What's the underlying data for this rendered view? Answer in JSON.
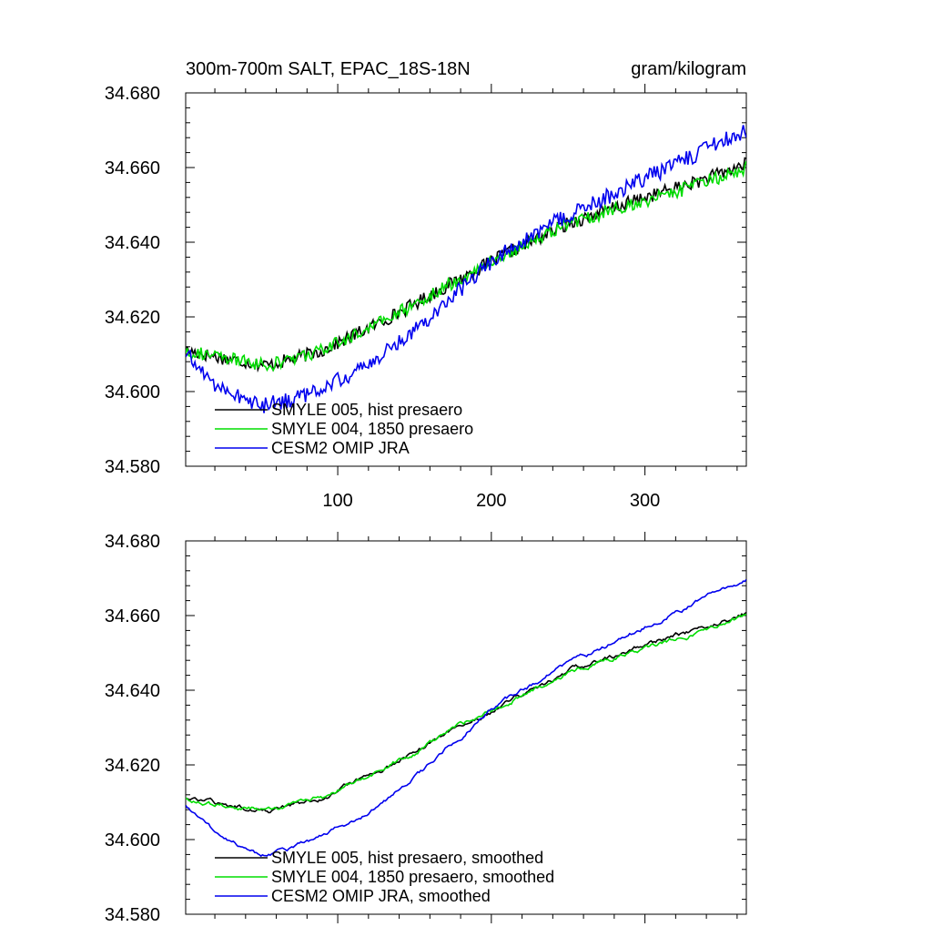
{
  "header": {
    "title": "300m-700m SALT, EPAC_18S-18N",
    "units": "gram/kilogram"
  },
  "chart_data": [
    {
      "type": "line",
      "xlim": [
        1,
        366
      ],
      "ylim": [
        34.58,
        34.68
      ],
      "xticks": [
        100,
        200,
        300
      ],
      "xtick_labels": [
        "100",
        "200",
        "300"
      ],
      "show_xtick_labels": true,
      "yticks": [
        34.58,
        34.6,
        34.62,
        34.64,
        34.66,
        34.68
      ],
      "ytick_labels": [
        "34.580",
        "34.600",
        "34.620",
        "34.640",
        "34.660",
        "34.680"
      ],
      "grid": false,
      "legend_position": "bottom-left",
      "series": [
        {
          "name": "SMYLE 005, hist presaero",
          "color": "#000000",
          "smoothed": false,
          "noise": 0.0018,
          "points": [
            [
              1,
              34.611
            ],
            [
              25,
              34.609
            ],
            [
              55,
              34.607
            ],
            [
              90,
              34.611
            ],
            [
              130,
              34.619
            ],
            [
              170,
              34.628
            ],
            [
              210,
              34.637
            ],
            [
              250,
              34.645
            ],
            [
              300,
              34.652
            ],
            [
              340,
              34.657
            ],
            [
              366,
              34.661
            ]
          ]
        },
        {
          "name": "SMYLE 004, 1850 presaero",
          "color": "#00dd00",
          "smoothed": false,
          "noise": 0.0018,
          "points": [
            [
              1,
              34.611
            ],
            [
              25,
              34.609
            ],
            [
              55,
              34.607
            ],
            [
              90,
              34.611
            ],
            [
              130,
              34.619
            ],
            [
              170,
              34.628
            ],
            [
              210,
              34.637
            ],
            [
              250,
              34.645
            ],
            [
              300,
              34.651
            ],
            [
              340,
              34.656
            ],
            [
              366,
              34.66
            ]
          ]
        },
        {
          "name": "CESM2 OMIP JRA",
          "color": "#0000ee",
          "smoothed": false,
          "noise": 0.0022,
          "points": [
            [
              1,
              34.61
            ],
            [
              20,
              34.602
            ],
            [
              50,
              34.596
            ],
            [
              80,
              34.599
            ],
            [
              120,
              34.607
            ],
            [
              160,
              34.62
            ],
            [
              200,
              34.635
            ],
            [
              240,
              34.645
            ],
            [
              280,
              34.653
            ],
            [
              320,
              34.661
            ],
            [
              366,
              34.67
            ]
          ]
        }
      ]
    },
    {
      "type": "line",
      "xlim": [
        1,
        366
      ],
      "ylim": [
        34.58,
        34.68
      ],
      "xticks": [
        100,
        200,
        300
      ],
      "xtick_labels": [
        "",
        "",
        ""
      ],
      "show_xtick_labels": false,
      "yticks": [
        34.58,
        34.6,
        34.62,
        34.64,
        34.66,
        34.68
      ],
      "ytick_labels": [
        "34.580",
        "34.600",
        "34.620",
        "34.640",
        "34.660",
        "34.680"
      ],
      "grid": false,
      "legend_position": "bottom-left",
      "series": [
        {
          "name": "SMYLE 005, hist presaero, smoothed",
          "color": "#000000",
          "smoothed": true,
          "noise": 0.0009,
          "points": [
            [
              1,
              34.611
            ],
            [
              25,
              34.609
            ],
            [
              55,
              34.608
            ],
            [
              90,
              34.611
            ],
            [
              130,
              34.619
            ],
            [
              170,
              34.628
            ],
            [
              210,
              34.637
            ],
            [
              250,
              34.645
            ],
            [
              300,
              34.652
            ],
            [
              340,
              34.657
            ],
            [
              366,
              34.661
            ]
          ]
        },
        {
          "name": "SMYLE 004, 1850 presaero, smoothed",
          "color": "#00dd00",
          "smoothed": true,
          "noise": 0.0009,
          "points": [
            [
              1,
              34.611
            ],
            [
              25,
              34.609
            ],
            [
              55,
              34.608
            ],
            [
              90,
              34.611
            ],
            [
              130,
              34.619
            ],
            [
              170,
              34.628
            ],
            [
              210,
              34.637
            ],
            [
              250,
              34.645
            ],
            [
              300,
              34.651
            ],
            [
              340,
              34.656
            ],
            [
              366,
              34.66
            ]
          ]
        },
        {
          "name": "CESM2 OMIP JRA, smoothed",
          "color": "#0000ee",
          "smoothed": true,
          "noise": 0.0008,
          "points": [
            [
              1,
              34.609
            ],
            [
              20,
              34.602
            ],
            [
              50,
              34.596
            ],
            [
              80,
              34.599
            ],
            [
              120,
              34.607
            ],
            [
              160,
              34.62
            ],
            [
              200,
              34.635
            ],
            [
              240,
              34.645
            ],
            [
              280,
              34.653
            ],
            [
              320,
              34.661
            ],
            [
              366,
              34.67
            ]
          ]
        }
      ]
    }
  ]
}
